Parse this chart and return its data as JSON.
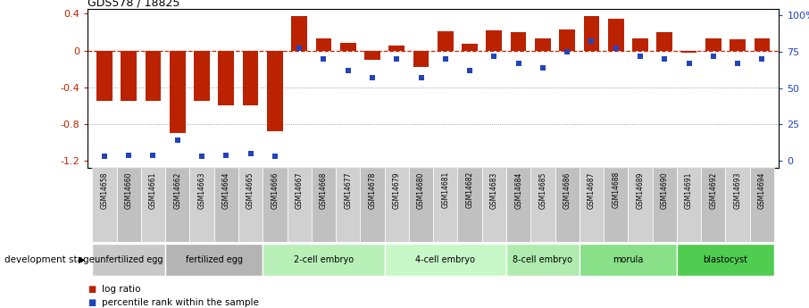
{
  "title": "GDS578 / 18825",
  "samples": [
    "GSM14658",
    "GSM14660",
    "GSM14661",
    "GSM14662",
    "GSM14663",
    "GSM14664",
    "GSM14665",
    "GSM14666",
    "GSM14667",
    "GSM14668",
    "GSM14677",
    "GSM14678",
    "GSM14679",
    "GSM14680",
    "GSM14681",
    "GSM14682",
    "GSM14683",
    "GSM14684",
    "GSM14685",
    "GSM14686",
    "GSM14687",
    "GSM14688",
    "GSM14689",
    "GSM14690",
    "GSM14691",
    "GSM14692",
    "GSM14693",
    "GSM14694"
  ],
  "log_ratio": [
    -0.55,
    -0.55,
    -0.55,
    -0.9,
    -0.55,
    -0.6,
    -0.6,
    -0.88,
    0.38,
    0.13,
    0.08,
    -0.1,
    0.05,
    -0.18,
    0.21,
    0.07,
    0.22,
    0.2,
    0.13,
    0.23,
    0.38,
    0.35,
    0.13,
    0.2,
    -0.02,
    0.13,
    0.12,
    0.13
  ],
  "percentile": [
    3,
    4,
    4,
    14,
    3,
    4,
    5,
    3,
    77,
    70,
    62,
    57,
    70,
    57,
    70,
    62,
    72,
    67,
    64,
    75,
    82,
    77,
    72,
    70,
    67,
    72,
    67,
    70
  ],
  "stages": [
    {
      "label": "unfertilized egg",
      "start": 0,
      "end": 3,
      "color": "#c8c8c8"
    },
    {
      "label": "fertilized egg",
      "start": 3,
      "end": 7,
      "color": "#b4b4b4"
    },
    {
      "label": "2-cell embryo",
      "start": 7,
      "end": 12,
      "color": "#b8f0b8"
    },
    {
      "label": "4-cell embryo",
      "start": 12,
      "end": 17,
      "color": "#c8f8c8"
    },
    {
      "label": "8-cell embryo",
      "start": 17,
      "end": 20,
      "color": "#b0ebb0"
    },
    {
      "label": "morula",
      "start": 20,
      "end": 24,
      "color": "#88e088"
    },
    {
      "label": "blastocyst",
      "start": 24,
      "end": 28,
      "color": "#50cc50"
    }
  ],
  "bar_color": "#bb2200",
  "dot_color": "#2244bb",
  "zero_line_color": "#cc2200",
  "ylim_left": [
    -1.28,
    0.45
  ],
  "ylim_right": [
    -4.8,
    104
  ],
  "yticks_left": [
    -1.2,
    -0.8,
    -0.4,
    0.0,
    0.4
  ],
  "yticks_right": [
    0,
    25,
    50,
    75,
    100
  ],
  "ytick_labels_left": [
    "-1.2",
    "-0.8",
    "-0.4",
    "0",
    "0.4"
  ],
  "ytick_labels_right": [
    "0",
    "25",
    "50",
    "75",
    "100%"
  ],
  "sample_col_color": "#d0d0d0"
}
